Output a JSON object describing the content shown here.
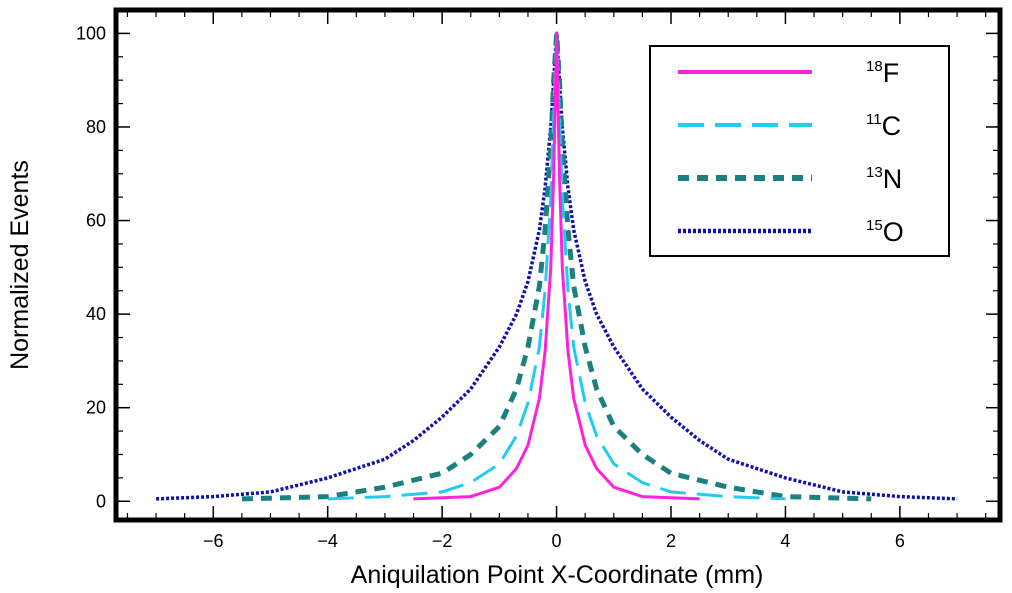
{
  "chart_data": {
    "type": "line",
    "title": "",
    "xlabel": "Aniquilation Point X-Coordinate (mm)",
    "ylabel": "Normalized Events",
    "xlim": [
      -7.7,
      7.75
    ],
    "ylim": [
      -4,
      105
    ],
    "xticks": [
      -6,
      -4,
      -2,
      0,
      2,
      4,
      6
    ],
    "xtick_labels": [
      "−6",
      "−4",
      "−2",
      "0",
      "2",
      "4",
      "6"
    ],
    "yticks": [
      0,
      20,
      40,
      60,
      80,
      100
    ],
    "ytick_labels": [
      "0",
      "20",
      "40",
      "60",
      "80",
      "100"
    ],
    "grid": false,
    "legend_position": "top-right",
    "series": [
      {
        "name": "18F",
        "mass": "18",
        "symbol": "F",
        "color": "#ff22dd",
        "dash": "solid",
        "x": [
          -2.5,
          -1.5,
          -1.0,
          -0.7,
          -0.5,
          -0.3,
          -0.2,
          -0.1,
          -0.05,
          0.0,
          0.05,
          0.1,
          0.2,
          0.3,
          0.5,
          0.7,
          1.0,
          1.5,
          2.5
        ],
        "y": [
          0.5,
          1,
          3,
          7,
          12,
          22,
          32,
          50,
          70,
          100,
          70,
          50,
          32,
          22,
          12,
          7,
          3,
          1,
          0.5
        ]
      },
      {
        "name": "11C",
        "mass": "11",
        "symbol": "C",
        "color": "#22ccee",
        "dash": "long-dash",
        "x": [
          -4.0,
          -3.0,
          -2.0,
          -1.5,
          -1.0,
          -0.7,
          -0.5,
          -0.3,
          -0.2,
          -0.1,
          -0.05,
          0.0,
          0.05,
          0.1,
          0.2,
          0.3,
          0.5,
          0.7,
          1.0,
          1.5,
          2.0,
          3.0,
          4.0
        ],
        "y": [
          0.5,
          1,
          2,
          4,
          8,
          14,
          21,
          33,
          45,
          65,
          82,
          100,
          82,
          65,
          45,
          33,
          21,
          14,
          8,
          4,
          2,
          1,
          0.5
        ]
      },
      {
        "name": "13N",
        "mass": "13",
        "symbol": "N",
        "color": "#1a8080",
        "dash": "dash",
        "x": [
          -5.5,
          -4.0,
          -3.0,
          -2.0,
          -1.5,
          -1.0,
          -0.7,
          -0.5,
          -0.3,
          -0.2,
          -0.1,
          -0.05,
          0.0,
          0.05,
          0.1,
          0.2,
          0.3,
          0.5,
          0.7,
          1.0,
          1.5,
          2.0,
          3.0,
          4.0,
          5.5
        ],
        "y": [
          0.5,
          1,
          3,
          6,
          10,
          16,
          24,
          33,
          46,
          58,
          76,
          90,
          100,
          90,
          76,
          58,
          46,
          33,
          24,
          16,
          10,
          6,
          3,
          1,
          0.5
        ]
      },
      {
        "name": "15O",
        "mass": "15",
        "symbol": "O",
        "color": "#1010b0",
        "dash": "dot",
        "x": [
          -7.0,
          -6.0,
          -5.0,
          -4.0,
          -3.0,
          -2.5,
          -2.0,
          -1.5,
          -1.0,
          -0.7,
          -0.5,
          -0.3,
          -0.2,
          -0.1,
          -0.05,
          0.0,
          0.05,
          0.1,
          0.2,
          0.3,
          0.5,
          0.7,
          1.0,
          1.5,
          2.0,
          2.5,
          3.0,
          4.0,
          5.0,
          6.0,
          7.0
        ],
        "y": [
          0.5,
          1,
          2,
          5,
          9,
          13,
          18,
          24,
          33,
          40,
          47,
          58,
          67,
          80,
          90,
          100,
          90,
          80,
          67,
          58,
          47,
          40,
          33,
          24,
          18,
          13,
          9,
          5,
          2,
          1,
          0.5
        ]
      }
    ]
  }
}
